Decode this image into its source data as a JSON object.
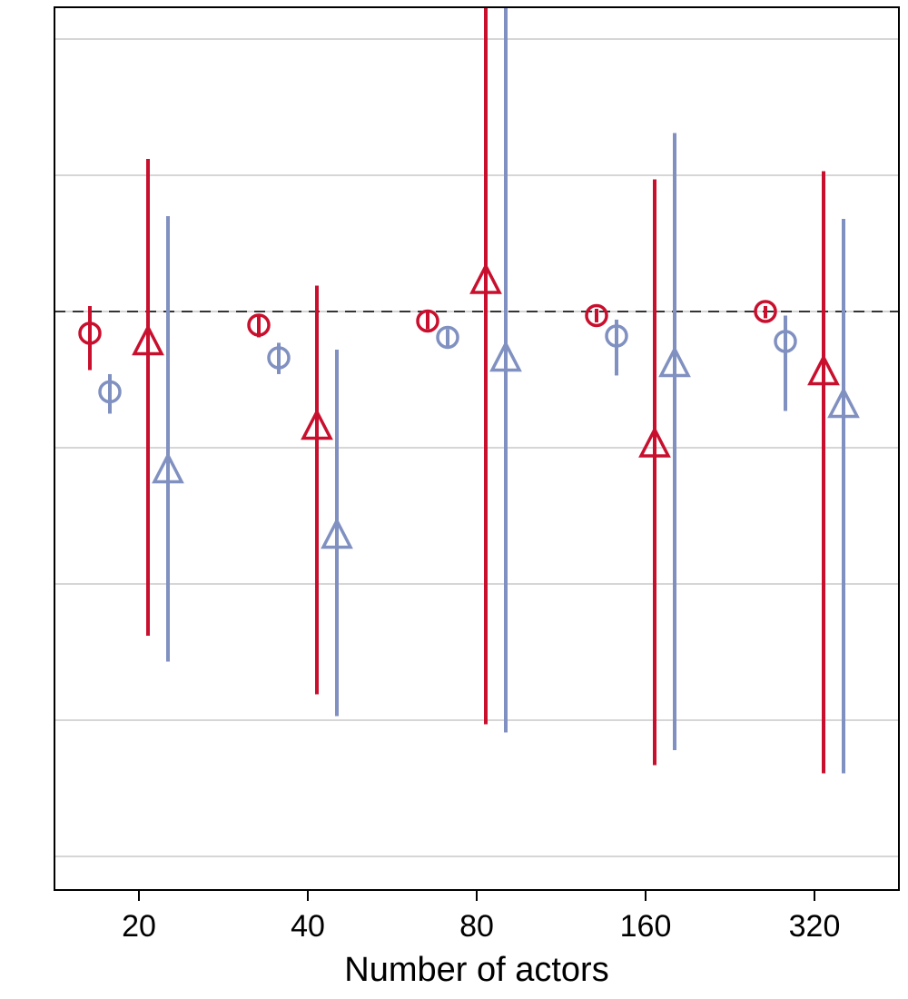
{
  "chart_data": {
    "type": "errorbar",
    "x_label": "Number of actors",
    "categories": [
      "20",
      "40",
      "80",
      "160",
      "320"
    ],
    "ylim": [
      -4.247,
      2.233
    ],
    "ygrid": [
      -4,
      -3,
      -2,
      -1,
      0,
      1,
      2
    ],
    "reference_line": 0,
    "grid": true,
    "series": [
      {
        "color": "#c8102e",
        "marker": "circle",
        "values": [
          -0.16,
          -0.1,
          -0.07,
          -0.03,
          0
        ],
        "lower": [
          -0.43,
          -0.19,
          -0.13,
          -0.08,
          -0.05
        ],
        "upper": [
          0.04,
          -0.03,
          0,
          0.02,
          0.04
        ]
      },
      {
        "color": "#8090c0",
        "marker": "circle",
        "values": [
          -0.59,
          -0.34,
          -0.19,
          -0.18,
          -0.22
        ],
        "lower": [
          -0.75,
          -0.46,
          -0.26,
          -0.47,
          -0.73
        ],
        "upper": [
          -0.46,
          -0.23,
          -0.13,
          -0.06,
          -0.03
        ]
      },
      {
        "color": "#c8102e",
        "marker": "triangle",
        "values": [
          -0.23,
          -0.85,
          0.22,
          -0.98,
          -0.45
        ],
        "lower": [
          -2.38,
          -2.81,
          -3.03,
          -3.33,
          -3.39
        ],
        "upper": [
          1.12,
          0.19,
          2.3,
          0.97,
          1.03
        ]
      },
      {
        "color": "#8090c0",
        "marker": "triangle",
        "values": [
          -1.17,
          -1.65,
          -0.35,
          -0.39,
          -0.69
        ],
        "lower": [
          -2.57,
          -2.97,
          -3.09,
          -3.22,
          -3.39
        ],
        "upper": [
          0.7,
          -0.28,
          2.3,
          1.31,
          0.68
        ]
      }
    ]
  }
}
